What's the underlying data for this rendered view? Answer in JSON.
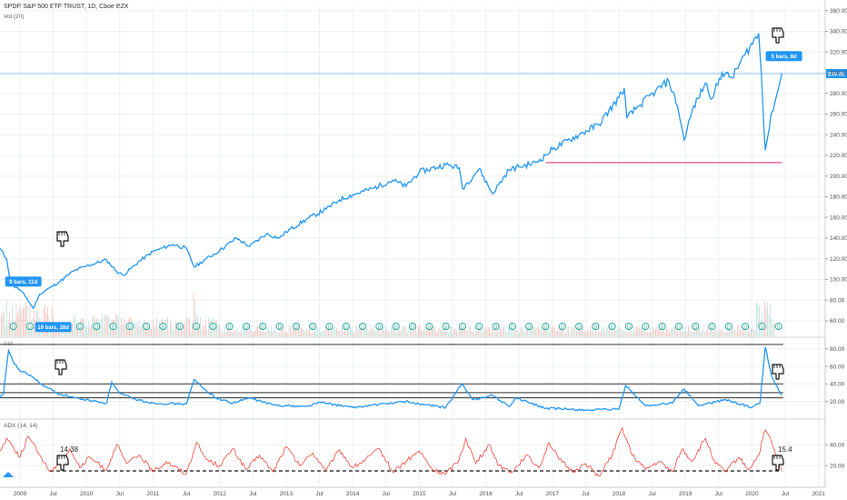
{
  "header": {
    "title": "SPDR S&P 500 ETF TRUST, 1D, Cboe BZX",
    "volume": "Vol (20)",
    "vix": "VIX",
    "adx": "ADX (14, 14)"
  },
  "price_label": "299.08",
  "colors": {
    "price": "#2196f3",
    "adx": "#f44336",
    "support": "#e91e63",
    "price_line": "#90caf9",
    "dividend": "#26a69a"
  },
  "chart_data": [
    {
      "type": "line",
      "series": [
        {
          "values": [
            [
              2008.7,
              130
            ],
            [
              2008.8,
              120
            ],
            [
              2008.85,
              100
            ],
            [
              2008.9,
              94
            ],
            [
              2009.0,
              90
            ],
            [
              2009.1,
              82
            ],
            [
              2009.2,
              72
            ],
            [
              2009.3,
              86
            ],
            [
              2009.45,
              92
            ],
            [
              2009.6,
              98
            ],
            [
              2009.8,
              108
            ],
            [
              2010.0,
              113
            ],
            [
              2010.3,
              119
            ],
            [
              2010.45,
              108
            ],
            [
              2010.55,
              104
            ],
            [
              2010.8,
              118
            ],
            [
              2011.0,
              127
            ],
            [
              2011.3,
              134
            ],
            [
              2011.5,
              130
            ],
            [
              2011.62,
              112
            ],
            [
              2011.8,
              120
            ],
            [
              2012.0,
              128
            ],
            [
              2012.25,
              140
            ],
            [
              2012.45,
              132
            ],
            [
              2012.7,
              144
            ],
            [
              2012.9,
              140
            ],
            [
              2013.0,
              146
            ],
            [
              2013.3,
              158
            ],
            [
              2013.6,
              168
            ],
            [
              2013.8,
              177
            ],
            [
              2014.0,
              182
            ],
            [
              2014.3,
              188
            ],
            [
              2014.6,
              196
            ],
            [
              2014.8,
              190
            ],
            [
              2015.0,
              204
            ],
            [
              2015.4,
              211
            ],
            [
              2015.6,
              208
            ],
            [
              2015.65,
              188
            ],
            [
              2015.9,
              207
            ],
            [
              2016.1,
              183
            ],
            [
              2016.35,
              206
            ],
            [
              2016.5,
              209
            ],
            [
              2016.75,
              213
            ],
            [
              2016.9,
              220
            ],
            [
              2017.0,
              226
            ],
            [
              2017.4,
              240
            ],
            [
              2017.7,
              250
            ],
            [
              2018.0,
              276
            ],
            [
              2018.08,
              285
            ],
            [
              2018.12,
              256
            ],
            [
              2018.3,
              268
            ],
            [
              2018.55,
              282
            ],
            [
              2018.75,
              292
            ],
            [
              2018.88,
              268
            ],
            [
              2018.98,
              235
            ],
            [
              2019.1,
              263
            ],
            [
              2019.3,
              290
            ],
            [
              2019.4,
              275
            ],
            [
              2019.55,
              300
            ],
            [
              2019.7,
              295
            ],
            [
              2019.9,
              318
            ],
            [
              2020.1,
              338
            ],
            [
              2020.14,
              300
            ],
            [
              2020.2,
              225
            ],
            [
              2020.3,
              262
            ],
            [
              2020.4,
              285
            ],
            [
              2020.45,
              299.08
            ]
          ]
        }
      ],
      "y_ticks": [
        "360.00",
        "340.00",
        "320.00",
        "300.00",
        "280.00",
        "260.00",
        "240.00",
        "220.00",
        "200.00",
        "180.00",
        "160.00",
        "140.00",
        "120.00",
        "100.00",
        "80.00",
        "60.00"
      ],
      "ylim": [
        45,
        365
      ],
      "xlim": [
        2008.7,
        2021.1
      ],
      "horizontal_levels": [
        299.08,
        213
      ],
      "annotations": [
        {
          "label": "9 bars, 11d"
        },
        {
          "label": "19 bars, 28d"
        },
        {
          "label": "5 bars, 8d"
        }
      ]
    },
    {
      "type": "line",
      "series": [
        {
          "values": [
            [
              2008.7,
              24
            ],
            [
              2008.75,
              28
            ],
            [
              2008.8,
              60
            ],
            [
              2008.83,
              78
            ],
            [
              2008.9,
              65
            ],
            [
              2009.0,
              55
            ],
            [
              2009.15,
              50
            ],
            [
              2009.35,
              38
            ],
            [
              2009.6,
              28
            ],
            [
              2009.9,
              23
            ],
            [
              2010.3,
              18
            ],
            [
              2010.38,
              42
            ],
            [
              2010.5,
              29
            ],
            [
              2010.7,
              23
            ],
            [
              2011.0,
              18
            ],
            [
              2011.5,
              17
            ],
            [
              2011.62,
              45
            ],
            [
              2011.75,
              35
            ],
            [
              2011.95,
              24
            ],
            [
              2012.2,
              18
            ],
            [
              2012.45,
              24
            ],
            [
              2012.8,
              16
            ],
            [
              2013.3,
              14
            ],
            [
              2013.5,
              19
            ],
            [
              2014.0,
              13
            ],
            [
              2014.8,
              20
            ],
            [
              2015.0,
              17
            ],
            [
              2015.4,
              13
            ],
            [
              2015.64,
              40
            ],
            [
              2015.8,
              22
            ],
            [
              2016.1,
              27
            ],
            [
              2016.35,
              14
            ],
            [
              2016.45,
              24
            ],
            [
              2016.9,
              12
            ],
            [
              2017.6,
              10
            ],
            [
              2018.0,
              11
            ],
            [
              2018.1,
              38
            ],
            [
              2018.4,
              15
            ],
            [
              2018.8,
              18
            ],
            [
              2018.98,
              34
            ],
            [
              2019.2,
              15
            ],
            [
              2019.6,
              22
            ],
            [
              2020.0,
              13
            ],
            [
              2020.12,
              18
            ],
            [
              2020.2,
              82
            ],
            [
              2020.3,
              48
            ],
            [
              2020.4,
              33
            ],
            [
              2020.45,
              27
            ]
          ]
        }
      ],
      "y_ticks": [
        "80.00",
        "60.00",
        "40.00",
        "20.00"
      ],
      "ylim": [
        5,
        88
      ],
      "horizontal_levels": [
        85,
        40,
        30,
        24
      ]
    },
    {
      "type": "line",
      "series": [
        {
          "values": [
            [
              2008.7,
              34
            ],
            [
              2008.8,
              46
            ],
            [
              2008.9,
              38
            ],
            [
              2009.0,
              28
            ],
            [
              2009.12,
              48
            ],
            [
              2009.3,
              30
            ],
            [
              2009.45,
              14.38
            ],
            [
              2009.6,
              22
            ],
            [
              2009.75,
              36
            ],
            [
              2009.9,
              18
            ],
            [
              2010.05,
              28
            ],
            [
              2010.3,
              16
            ],
            [
              2010.45,
              40
            ],
            [
              2010.6,
              22
            ],
            [
              2010.8,
              30
            ],
            [
              2011.0,
              14
            ],
            [
              2011.2,
              24
            ],
            [
              2011.5,
              12
            ],
            [
              2011.65,
              42
            ],
            [
              2011.8,
              26
            ],
            [
              2012.0,
              20
            ],
            [
              2012.2,
              36
            ],
            [
              2012.4,
              16
            ],
            [
              2012.6,
              30
            ],
            [
              2012.8,
              14
            ],
            [
              2013.0,
              38
            ],
            [
              2013.2,
              20
            ],
            [
              2013.4,
              32
            ],
            [
              2013.6,
              15
            ],
            [
              2013.8,
              35
            ],
            [
              2014.0,
              18
            ],
            [
              2014.2,
              26
            ],
            [
              2014.4,
              36
            ],
            [
              2014.6,
              14
            ],
            [
              2014.8,
              24
            ],
            [
              2015.0,
              34
            ],
            [
              2015.2,
              16
            ],
            [
              2015.4,
              12
            ],
            [
              2015.6,
              26
            ],
            [
              2015.7,
              46
            ],
            [
              2015.85,
              22
            ],
            [
              2016.05,
              40
            ],
            [
              2016.2,
              20
            ],
            [
              2016.4,
              14
            ],
            [
              2016.6,
              30
            ],
            [
              2016.8,
              18
            ],
            [
              2016.95,
              42
            ],
            [
              2017.1,
              26
            ],
            [
              2017.3,
              14
            ],
            [
              2017.5,
              22
            ],
            [
              2017.7,
              10
            ],
            [
              2017.9,
              30
            ],
            [
              2018.05,
              56
            ],
            [
              2018.2,
              30
            ],
            [
              2018.4,
              16
            ],
            [
              2018.6,
              24
            ],
            [
              2018.8,
              14
            ],
            [
              2018.95,
              36
            ],
            [
              2019.1,
              24
            ],
            [
              2019.3,
              46
            ],
            [
              2019.45,
              22
            ],
            [
              2019.6,
              14
            ],
            [
              2019.8,
              28
            ],
            [
              2019.95,
              16
            ],
            [
              2020.1,
              30
            ],
            [
              2020.2,
              54
            ],
            [
              2020.3,
              42
            ],
            [
              2020.4,
              20
            ],
            [
              2020.45,
              15.4
            ]
          ]
        }
      ],
      "y_ticks": [
        "40.00",
        "20.00"
      ],
      "ylim": [
        2,
        60
      ],
      "horizontal_levels": [
        15
      ],
      "labels": [
        "14.38",
        "15.4"
      ]
    }
  ],
  "x_axis": {
    "ticks": [
      {
        "label": "2009",
        "value": 2009.0
      },
      {
        "label": "Jul",
        "value": 2009.5
      },
      {
        "label": "2010",
        "value": 2010.0
      },
      {
        "label": "Jul",
        "value": 2010.5
      },
      {
        "label": "2011",
        "value": 2011.0
      },
      {
        "label": "Jul",
        "value": 2011.5
      },
      {
        "label": "2012",
        "value": 2012.0
      },
      {
        "label": "Jul",
        "value": 2012.5
      },
      {
        "label": "2013",
        "value": 2013.0
      },
      {
        "label": "Jul",
        "value": 2013.5
      },
      {
        "label": "2014",
        "value": 2014.0
      },
      {
        "label": "Jul",
        "value": 2014.5
      },
      {
        "label": "2015",
        "value": 2015.0
      },
      {
        "label": "Jul",
        "value": 2015.5
      },
      {
        "label": "2016",
        "value": 2016.0
      },
      {
        "label": "Jul",
        "value": 2016.5
      },
      {
        "label": "2017",
        "value": 2017.0
      },
      {
        "label": "Jul",
        "value": 2017.5
      },
      {
        "label": "2018",
        "value": 2018.0
      },
      {
        "label": "Jul",
        "value": 2018.5
      },
      {
        "label": "2019",
        "value": 2019.0
      },
      {
        "label": "Jul",
        "value": 2019.5
      },
      {
        "label": "2020",
        "value": 2020.0
      },
      {
        "label": "Jul",
        "value": 2020.5
      },
      {
        "label": "2021",
        "value": 2021.0
      }
    ]
  }
}
